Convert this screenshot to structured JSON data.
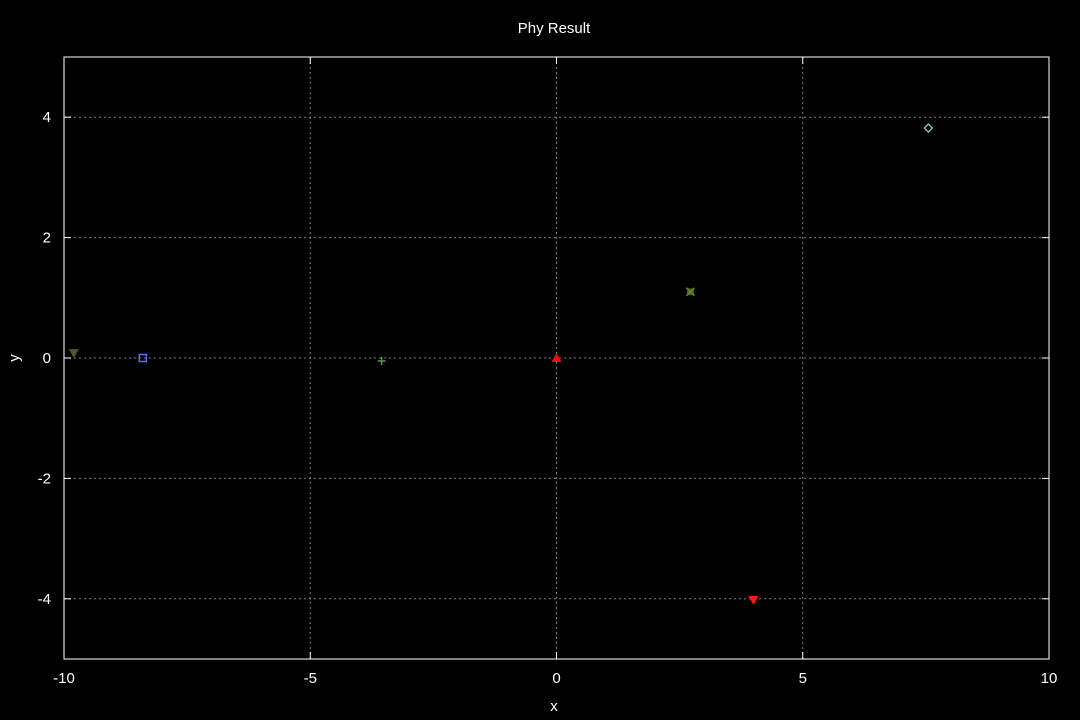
{
  "chart_data": {
    "type": "scatter",
    "title": "Phy Result",
    "xlabel": "x",
    "ylabel": "y",
    "xlim": [
      -10,
      10
    ],
    "ylim": [
      -5,
      5
    ],
    "xticks": [
      -10,
      -5,
      0,
      5,
      10
    ],
    "yticks": [
      -4,
      -2,
      0,
      2,
      4
    ],
    "grid": true,
    "legend": "none",
    "colors": {
      "background": "#000000",
      "axes": "#ffffff",
      "grid": "#a0a0a0",
      "text": "#ffffff"
    },
    "points": [
      {
        "name": "point-olive-triangle",
        "x": -9.8,
        "y": 0.08,
        "marker": "triangle-down",
        "color": "#4b5a2a"
      },
      {
        "name": "point-blue-square",
        "x": -8.4,
        "y": 0.0,
        "marker": "square-open",
        "color": "#5a6cff"
      },
      {
        "name": "point-green-plus",
        "x": -3.55,
        "y": -0.05,
        "marker": "plus",
        "color": "#5a9a5a"
      },
      {
        "name": "point-red-triangle",
        "x": 0.0,
        "y": 0.0,
        "marker": "triangle-up",
        "color": "#ff0000"
      },
      {
        "name": "point-olive-cross",
        "x": 2.72,
        "y": 1.1,
        "marker": "cross-square",
        "color": "#6b8e23"
      },
      {
        "name": "point-cyan-diamond",
        "x": 7.55,
        "y": 3.82,
        "marker": "diamond-open",
        "color": "#7fd8be"
      },
      {
        "name": "point-red-triangle-down",
        "x": 4.0,
        "y": -4.02,
        "marker": "triangle-down",
        "color": "#ff1a1a"
      }
    ]
  }
}
